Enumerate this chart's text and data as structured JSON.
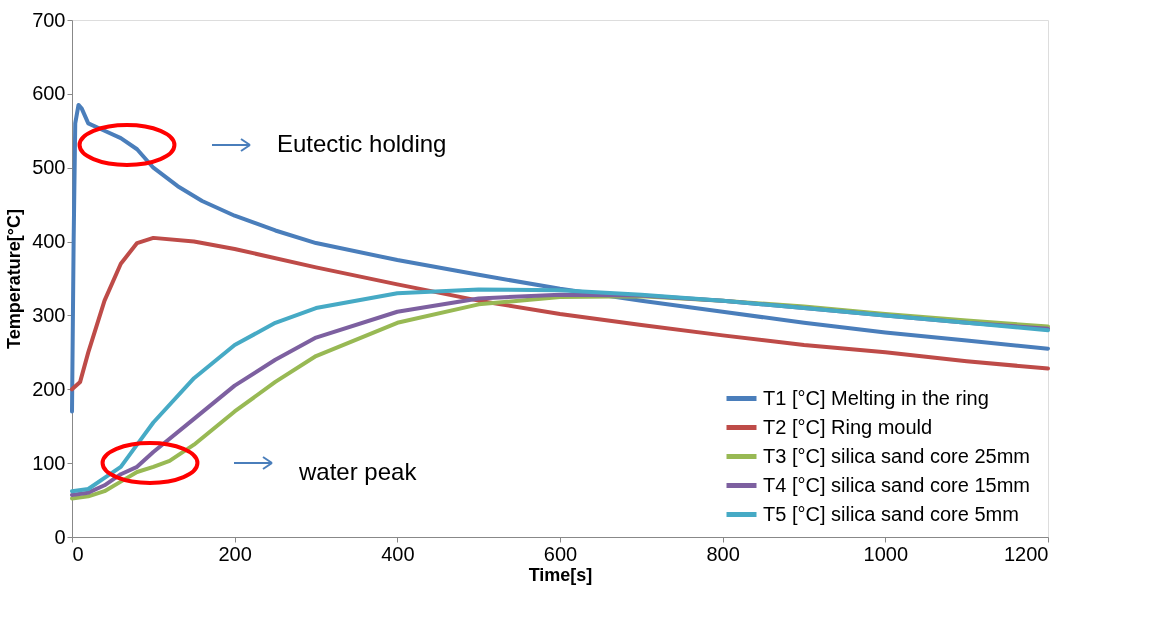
{
  "chart_data": {
    "type": "line",
    "xlabel": "Time[s]",
    "ylabel": "Temperature[°C]",
    "xlim": [
      0,
      1200
    ],
    "xticks": [
      0,
      200,
      400,
      600,
      800,
      1000,
      1200
    ],
    "ylim": [
      0,
      700
    ],
    "yticks": [
      0,
      100,
      200,
      300,
      400,
      500,
      600,
      700
    ],
    "grid": false,
    "legend": "bottom right",
    "marker": "none",
    "line_style": "solid",
    "annotations": [
      "Eutectic holding",
      "water peak"
    ],
    "series": [
      {
        "name": "T1 [°C] Melting in the ring",
        "color": "#4a7ebb",
        "x": [
          0,
          2,
          4,
          8,
          12,
          20,
          40,
          60,
          80,
          100,
          130,
          160,
          200,
          250,
          300,
          400,
          500,
          600,
          700,
          800,
          900,
          1000,
          1100,
          1200
        ],
        "values": [
          170,
          400,
          560,
          585,
          580,
          560,
          550,
          540,
          525,
          500,
          475,
          455,
          435,
          415,
          398,
          375,
          355,
          336,
          320,
          305,
          290,
          277,
          266,
          255
        ]
      },
      {
        "name": "T2 [°C] Ring mould",
        "color": "#be4b48",
        "x": [
          0,
          10,
          20,
          40,
          60,
          80,
          100,
          150,
          200,
          300,
          400,
          500,
          600,
          700,
          800,
          900,
          1000,
          1100,
          1200
        ],
        "values": [
          200,
          210,
          250,
          320,
          370,
          398,
          405,
          400,
          390,
          365,
          342,
          320,
          302,
          287,
          273,
          260,
          250,
          238,
          228
        ]
      },
      {
        "name": "T3 [°C] silica sand core  25mm",
        "color": "#98b954",
        "x": [
          0,
          20,
          40,
          60,
          80,
          100,
          120,
          150,
          200,
          250,
          300,
          400,
          500,
          600,
          700,
          800,
          900,
          1000,
          1100,
          1200
        ],
        "values": [
          52,
          55,
          62,
          75,
          88,
          95,
          103,
          125,
          170,
          210,
          245,
          290,
          315,
          325,
          326,
          320,
          312,
          302,
          293,
          285
        ]
      },
      {
        "name": "T4 [°C] silica sand core  15mm",
        "color": "#7d60a0",
        "x": [
          0,
          20,
          40,
          60,
          80,
          100,
          150,
          200,
          250,
          300,
          400,
          500,
          600,
          700,
          800,
          900,
          1000,
          1100,
          1200
        ],
        "values": [
          57,
          60,
          70,
          85,
          95,
          115,
          160,
          205,
          240,
          270,
          305,
          323,
          328,
          327,
          320,
          310,
          300,
          290,
          282
        ]
      },
      {
        "name": "T5 [°C] silica sand core  5mm",
        "color": "#46aac5",
        "x": [
          0,
          20,
          40,
          60,
          80,
          100,
          150,
          200,
          250,
          300,
          400,
          500,
          600,
          700,
          800,
          900,
          1000,
          1100,
          1200
        ],
        "values": [
          62,
          65,
          80,
          95,
          125,
          155,
          215,
          260,
          290,
          310,
          330,
          335,
          334,
          328,
          320,
          310,
          300,
          290,
          280
        ]
      }
    ]
  }
}
